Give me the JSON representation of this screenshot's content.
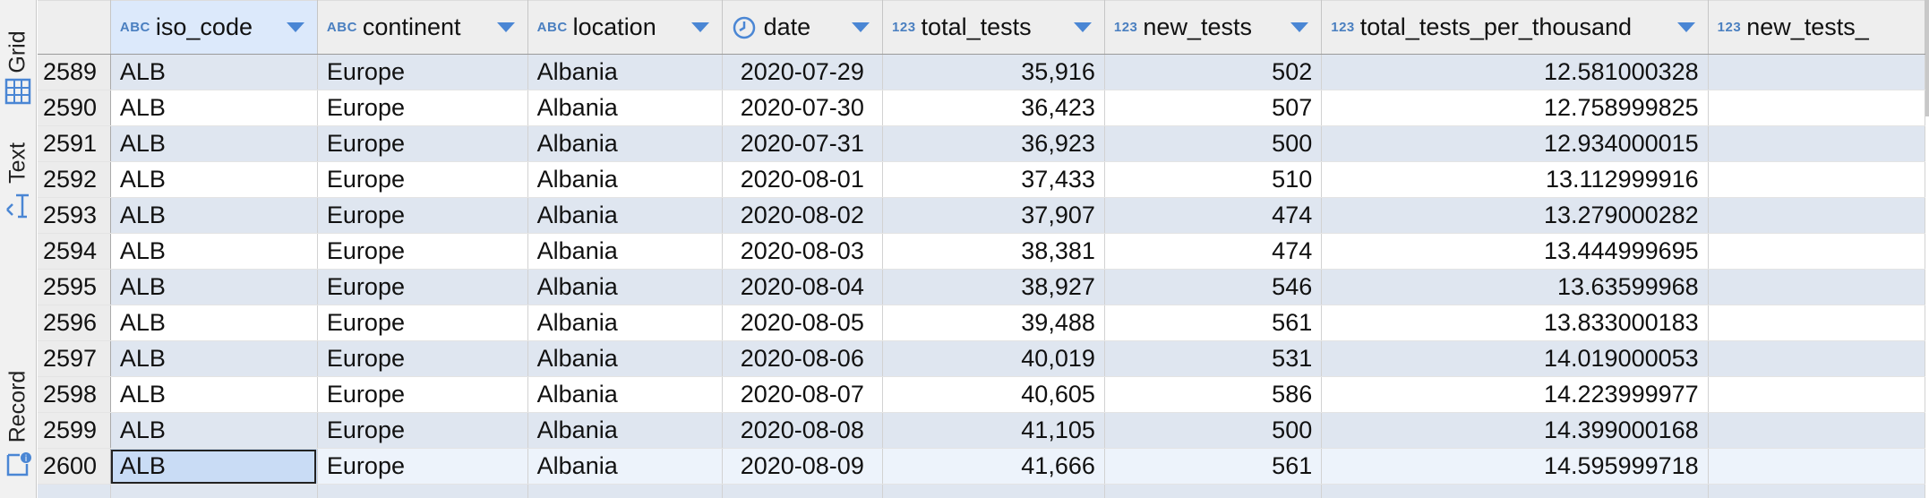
{
  "sidebar": {
    "tabs": [
      {
        "label": "Grid",
        "icon": "grid-icon"
      },
      {
        "label": "Text",
        "icon": "text-icon"
      },
      {
        "label": "Record",
        "icon": "record-icon"
      }
    ]
  },
  "columns": [
    {
      "name": "iso_code",
      "type": "ABC"
    },
    {
      "name": "continent",
      "type": "ABC"
    },
    {
      "name": "location",
      "type": "ABC"
    },
    {
      "name": "date",
      "type": "clock"
    },
    {
      "name": "total_tests",
      "type": "123"
    },
    {
      "name": "new_tests",
      "type": "123"
    },
    {
      "name": "total_tests_per_thousand",
      "type": "123"
    },
    {
      "name": "new_tests_",
      "type": "123"
    }
  ],
  "rows": [
    {
      "n": "2589",
      "iso": "ALB",
      "cont": "Europe",
      "loc": "Albania",
      "date": "2020-07-29",
      "total": "35,916",
      "new": "502",
      "tpt": "12.581000328"
    },
    {
      "n": "2590",
      "iso": "ALB",
      "cont": "Europe",
      "loc": "Albania",
      "date": "2020-07-30",
      "total": "36,423",
      "new": "507",
      "tpt": "12.758999825"
    },
    {
      "n": "2591",
      "iso": "ALB",
      "cont": "Europe",
      "loc": "Albania",
      "date": "2020-07-31",
      "total": "36,923",
      "new": "500",
      "tpt": "12.934000015"
    },
    {
      "n": "2592",
      "iso": "ALB",
      "cont": "Europe",
      "loc": "Albania",
      "date": "2020-08-01",
      "total": "37,433",
      "new": "510",
      "tpt": "13.112999916"
    },
    {
      "n": "2593",
      "iso": "ALB",
      "cont": "Europe",
      "loc": "Albania",
      "date": "2020-08-02",
      "total": "37,907",
      "new": "474",
      "tpt": "13.279000282"
    },
    {
      "n": "2594",
      "iso": "ALB",
      "cont": "Europe",
      "loc": "Albania",
      "date": "2020-08-03",
      "total": "38,381",
      "new": "474",
      "tpt": "13.444999695"
    },
    {
      "n": "2595",
      "iso": "ALB",
      "cont": "Europe",
      "loc": "Albania",
      "date": "2020-08-04",
      "total": "38,927",
      "new": "546",
      "tpt": "13.63599968"
    },
    {
      "n": "2596",
      "iso": "ALB",
      "cont": "Europe",
      "loc": "Albania",
      "date": "2020-08-05",
      "total": "39,488",
      "new": "561",
      "tpt": "13.833000183"
    },
    {
      "n": "2597",
      "iso": "ALB",
      "cont": "Europe",
      "loc": "Albania",
      "date": "2020-08-06",
      "total": "40,019",
      "new": "531",
      "tpt": "14.019000053"
    },
    {
      "n": "2598",
      "iso": "ALB",
      "cont": "Europe",
      "loc": "Albania",
      "date": "2020-08-07",
      "total": "40,605",
      "new": "586",
      "tpt": "14.223999977"
    },
    {
      "n": "2599",
      "iso": "ALB",
      "cont": "Europe",
      "loc": "Albania",
      "date": "2020-08-08",
      "total": "41,105",
      "new": "500",
      "tpt": "14.399000168"
    },
    {
      "n": "2600",
      "iso": "ALB",
      "cont": "Europe",
      "loc": "Albania",
      "date": "2020-08-09",
      "total": "41,666",
      "new": "561",
      "tpt": "14.595999718"
    }
  ],
  "selected_row": 11,
  "accent_color": "#4a86d4"
}
